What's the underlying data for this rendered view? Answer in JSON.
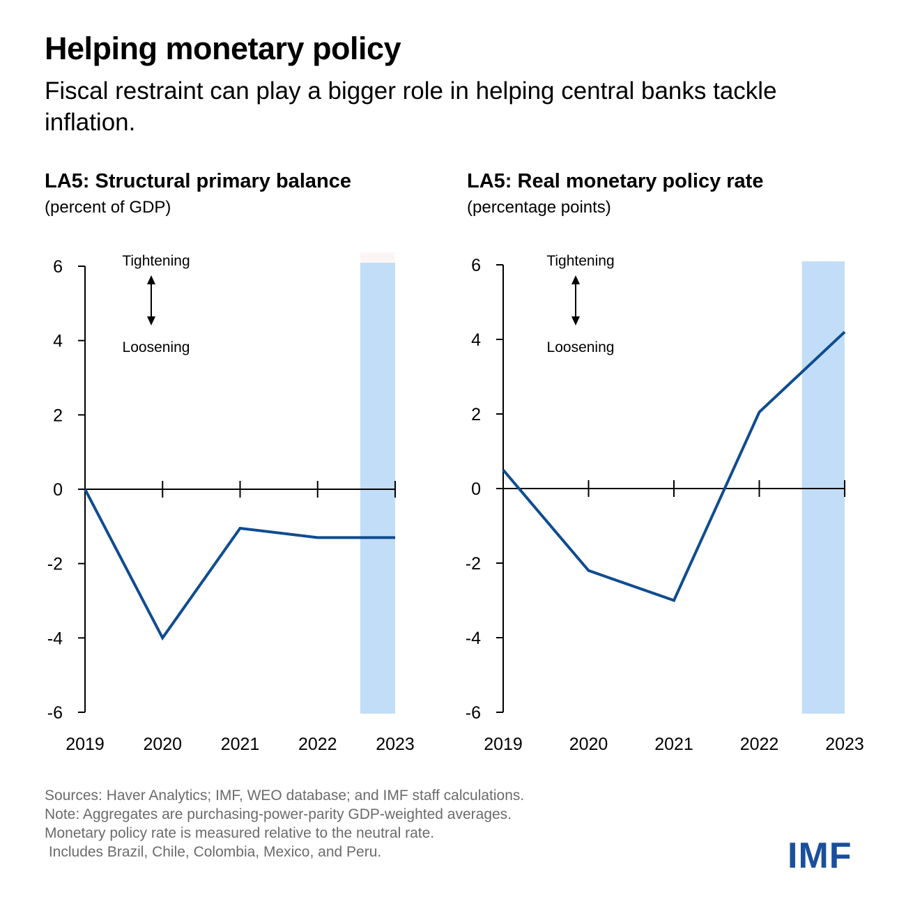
{
  "header": {
    "title": "Helping monetary policy",
    "subtitle": "Fiscal restraint can play a bigger role in helping central banks tackle inflation."
  },
  "colors": {
    "line": "#0f4c8f",
    "shade": "#c2ddf7",
    "shade_top": "#fbf6f5",
    "logo": "#1a4f9c",
    "notes": "#6b6b6b"
  },
  "chart_data": [
    {
      "type": "line",
      "title": "LA5: Structural primary balance",
      "ylabel": "(percent of GDP)",
      "x": [
        "2019",
        "2020",
        "2021",
        "2022",
        "2023"
      ],
      "series": [
        {
          "name": "Structural primary balance",
          "values": [
            0.0,
            -4.0,
            -1.05,
            -1.3,
            -1.3
          ]
        }
      ],
      "ylim": [
        -6,
        6
      ],
      "yticks": [
        "6",
        "4",
        "2",
        "0",
        "-2",
        "-4",
        "-6"
      ],
      "ytick_values": [
        6,
        4,
        2,
        0,
        -2,
        -4,
        -6
      ],
      "shaded_period": [
        "2022",
        "2023"
      ],
      "shaded_period_fraction": 0.55,
      "annotations": {
        "top": "Tightening",
        "bottom": "Loosening"
      },
      "grid": false
    },
    {
      "type": "line",
      "title": "LA5: Real monetary policy rate",
      "ylabel": "(percentage points)",
      "x": [
        "2019",
        "2020",
        "2021",
        "2022",
        "2023"
      ],
      "series": [
        {
          "name": "Real monetary policy rate",
          "values": [
            0.5,
            -2.2,
            -3.0,
            2.05,
            4.2
          ]
        }
      ],
      "ylim": [
        -6,
        6
      ],
      "yticks": [
        "6",
        "4",
        "2",
        "0",
        "-2",
        "-4",
        "-6"
      ],
      "ytick_values": [
        6,
        4,
        2,
        0,
        -2,
        -4,
        -6
      ],
      "shaded_period": [
        "2022",
        "2023"
      ],
      "shaded_period_fraction": 0.5,
      "annotations": {
        "top": "Tightening",
        "bottom": "Loosening"
      },
      "grid": false
    }
  ],
  "footer": {
    "notes": [
      "Sources: Haver Analytics; IMF, WEO database; and IMF staff calculations.",
      "Note: Aggregates are purchasing-power-parity GDP-weighted averages.",
      "Monetary policy rate is measured relative to the neutral rate.",
      " Includes Brazil, Chile, Colombia, Mexico, and Peru."
    ],
    "logo": "IMF"
  }
}
